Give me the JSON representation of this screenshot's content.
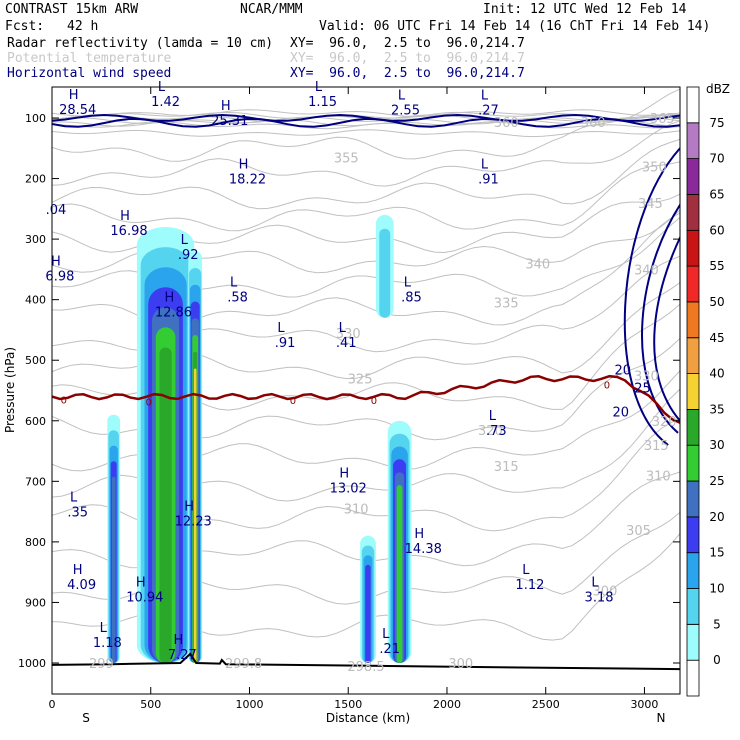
{
  "header": {
    "model": "CONTRAST 15km ARW",
    "center": "NCAR/MMM",
    "init": "Init: 12 UTC Wed 12 Feb 14",
    "fcst_label": "Fcst:",
    "fcst_value": "42 h",
    "valid": "Valid: 06 UTC Fri 14 Feb 14 (16 ChT Fri 14 Feb 14)",
    "fields": [
      {
        "name": "Radar reflectivity (lamda = 10 cm)",
        "xy": "XY=  96.0,  2.5 to  96.0,214.7",
        "color": "#000000"
      },
      {
        "name": "Potential temperature",
        "xy": "XY=  96.0,  2.5 to  96.0,214.7",
        "color": "#c8c8c8"
      },
      {
        "name": "Horizontal wind speed",
        "xy": "XY=  96.0,  2.5 to  96.0,214.7",
        "color": "#000080"
      }
    ]
  },
  "chart_data": {
    "type": "heatmap",
    "description_free": true,
    "xlabel": "Distance (km)",
    "ylabel": "Pressure (hPa)",
    "xlim": [
      0,
      3180
    ],
    "ylim": [
      1050,
      60
    ],
    "x_ticks": [
      0,
      500,
      1000,
      1500,
      2000,
      2500,
      3000
    ],
    "y_ticks": [
      100,
      200,
      300,
      400,
      500,
      600,
      700,
      800,
      900,
      1000
    ],
    "x_end_labels": {
      "left": "S",
      "right": "N"
    },
    "colorbar": {
      "unit": "dBZ",
      "levels": [
        0,
        5,
        10,
        15,
        20,
        25,
        30,
        35,
        40,
        45,
        50,
        55,
        60,
        65,
        70,
        75
      ],
      "colors": [
        "#ffffff",
        "#9ffcfc",
        "#55d4f0",
        "#2aa4ec",
        "#3c3cf0",
        "#4070c0",
        "#33cc33",
        "#2aa82a",
        "#f5d232",
        "#f0a040",
        "#f07820",
        "#f02828",
        "#c81414",
        "#a03040",
        "#8a2a9a",
        "#b47ac4"
      ]
    },
    "reflectivity_cells": [
      {
        "x0": 280,
        "x1": 345,
        "p0": 590,
        "p1": 1000,
        "max_dbz": 25
      },
      {
        "x0": 430,
        "x1": 720,
        "p0": 280,
        "p1": 1000,
        "max_dbz": 35
      },
      {
        "x0": 690,
        "x1": 760,
        "p0": 320,
        "p1": 1000,
        "max_dbz": 40
      },
      {
        "x0": 1640,
        "x1": 1730,
        "p0": 260,
        "p1": 430,
        "max_dbz": 10
      },
      {
        "x0": 1560,
        "x1": 1640,
        "p0": 790,
        "p1": 1000,
        "max_dbz": 20
      },
      {
        "x0": 1700,
        "x1": 1820,
        "p0": 600,
        "p1": 1000,
        "max_dbz": 30
      }
    ],
    "wind_labels": [
      {
        "kind": "H",
        "x": 130,
        "p": 75,
        "value": "28.54"
      },
      {
        "kind": "L",
        "x": 575,
        "p": 62,
        "value": "1.42"
      },
      {
        "kind": "H",
        "x": 900,
        "p": 93,
        "value": "25.31"
      },
      {
        "kind": "L",
        "x": 1370,
        "p": 62,
        "value": "1.15"
      },
      {
        "kind": "L",
        "x": 1790,
        "p": 76,
        "value": "2.55"
      },
      {
        "kind": "L",
        "x": 2210,
        "p": 76,
        "value": ".27"
      },
      {
        "kind": "H",
        "x": 990,
        "p": 190,
        "value": "18.22"
      },
      {
        "kind": "L",
        "x": 2210,
        "p": 190,
        "value": ".91"
      },
      {
        "kind": "",
        "x": 20,
        "p": 240,
        "value": ".04"
      },
      {
        "kind": "H",
        "x": 390,
        "p": 275,
        "value": "16.98"
      },
      {
        "kind": "L",
        "x": 690,
        "p": 315,
        "value": ".92"
      },
      {
        "kind": "H",
        "x": 40,
        "p": 350,
        "value": "6.98"
      },
      {
        "kind": "L",
        "x": 940,
        "p": 385,
        "value": ".58"
      },
      {
        "kind": "L",
        "x": 1820,
        "p": 385,
        "value": ".85"
      },
      {
        "kind": "H",
        "x": 615,
        "p": 410,
        "value": "12.86"
      },
      {
        "kind": "L",
        "x": 1180,
        "p": 460,
        "value": ".91"
      },
      {
        "kind": "L",
        "x": 1490,
        "p": 460,
        "value": ".41"
      },
      {
        "kind": "L",
        "x": 2250,
        "p": 605,
        "value": ".73"
      },
      {
        "kind": "H",
        "x": 1500,
        "p": 700,
        "value": "13.02"
      },
      {
        "kind": "L",
        "x": 130,
        "p": 740,
        "value": ".35"
      },
      {
        "kind": "H",
        "x": 715,
        "p": 755,
        "value": "12.23"
      },
      {
        "kind": "H",
        "x": 1880,
        "p": 800,
        "value": "14.38"
      },
      {
        "kind": "H",
        "x": 150,
        "p": 860,
        "value": "4.09"
      },
      {
        "kind": "L",
        "x": 2420,
        "p": 860,
        "value": "1.12"
      },
      {
        "kind": "H",
        "x": 470,
        "p": 880,
        "value": "10.94"
      },
      {
        "kind": "L",
        "x": 2770,
        "p": 880,
        "value": "3.18"
      },
      {
        "kind": "L",
        "x": 280,
        "p": 955,
        "value": "1.18"
      },
      {
        "kind": "L",
        "x": 1710,
        "p": 965,
        "value": ".21"
      },
      {
        "kind": "H",
        "x": 660,
        "p": 975,
        "value": "7.27"
      }
    ],
    "wind_contour_labels": [
      {
        "x": 2890,
        "p": 515,
        "value": "20"
      },
      {
        "x": 2990,
        "p": 545,
        "value": "25"
      },
      {
        "x": 2880,
        "p": 585,
        "value": "20"
      }
    ],
    "theta_labels": [
      {
        "x": 2300,
        "p": 107,
        "value": "360"
      },
      {
        "x": 2740,
        "p": 107,
        "value": "360"
      },
      {
        "x": 3090,
        "p": 100,
        "value": "365"
      },
      {
        "x": 1490,
        "p": 165,
        "value": "355"
      },
      {
        "x": 3050,
        "p": 180,
        "value": "350"
      },
      {
        "x": 3030,
        "p": 240,
        "value": "345"
      },
      {
        "x": 2460,
        "p": 340,
        "value": "340"
      },
      {
        "x": 3010,
        "p": 350,
        "value": "340"
      },
      {
        "x": 2300,
        "p": 405,
        "value": "335"
      },
      {
        "x": 1500,
        "p": 455,
        "value": "330"
      },
      {
        "x": 3010,
        "p": 525,
        "value": "330"
      },
      {
        "x": 1560,
        "p": 530,
        "value": "325"
      },
      {
        "x": 3100,
        "p": 600,
        "value": "320"
      },
      {
        "x": 2220,
        "p": 615,
        "value": "320"
      },
      {
        "x": 3060,
        "p": 640,
        "value": "315"
      },
      {
        "x": 2300,
        "p": 675,
        "value": "315"
      },
      {
        "x": 3070,
        "p": 690,
        "value": "310"
      },
      {
        "x": 1540,
        "p": 745,
        "value": "310"
      },
      {
        "x": 2970,
        "p": 780,
        "value": "305"
      },
      {
        "x": 2800,
        "p": 880,
        "value": "300"
      },
      {
        "x": 2070,
        "p": 1000,
        "value": "300"
      },
      {
        "x": 1590,
        "p": 1005,
        "value": "298.5"
      },
      {
        "x": 970,
        "p": 1000,
        "value": "299.8"
      },
      {
        "x": 250,
        "p": 1000,
        "value": "299"
      }
    ],
    "freezing_level": {
      "label": "0",
      "mean_p": 560
    }
  }
}
